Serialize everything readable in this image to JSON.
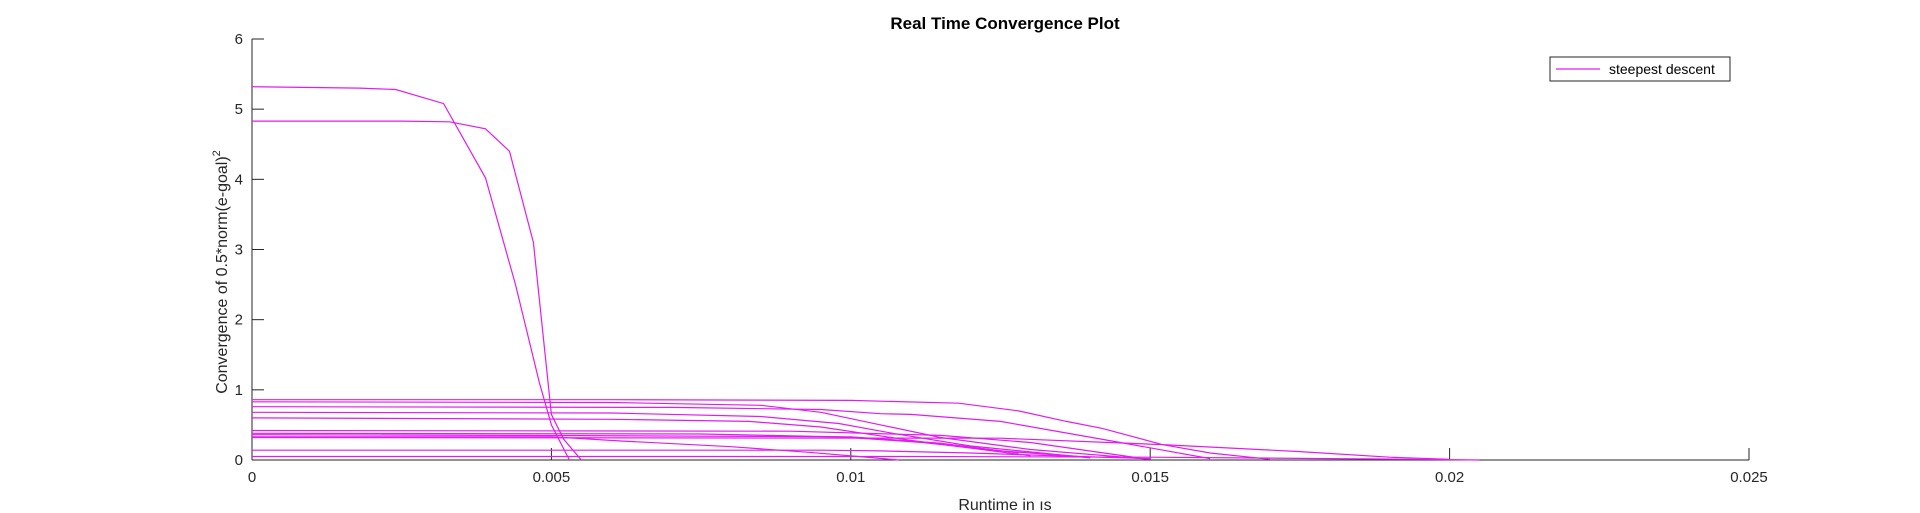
{
  "chart_data": {
    "type": "line",
    "title": "Real Time Convergence Plot",
    "xlabel": "Runtime in ıs",
    "ylabel": "Convergence of 0.5*norm(e-goal)",
    "ylabel_superscript": "2",
    "xlim": [
      0,
      0.025
    ],
    "ylim": [
      0,
      6
    ],
    "xticks": [
      0,
      0.005,
      0.01,
      0.015,
      0.02,
      0.025
    ],
    "xtick_labels": [
      "0",
      "0.005",
      "0.01",
      "0.015",
      "0.02",
      "0.025"
    ],
    "yticks": [
      0,
      1,
      2,
      3,
      4,
      5,
      6
    ],
    "ytick_labels": [
      "0",
      "1",
      "2",
      "3",
      "4",
      "5",
      "6"
    ],
    "grid": false,
    "legend": {
      "position": "top-right",
      "entries": [
        "steepest descent"
      ]
    },
    "line_color": "#e11cf0",
    "series": [
      {
        "name": "steepest descent",
        "x": [
          0,
          0.0018,
          0.0024,
          0.0032,
          0.0039,
          0.0044,
          0.0048,
          0.005,
          0.0053
        ],
        "y": [
          5.32,
          5.3,
          5.28,
          5.08,
          4.02,
          2.5,
          1.1,
          0.5,
          0.0
        ]
      },
      {
        "x": [
          0,
          0.0025,
          0.0033,
          0.0039,
          0.0043,
          0.0047,
          0.005,
          0.0052,
          0.0055
        ],
        "y": [
          4.83,
          4.83,
          4.82,
          4.72,
          4.4,
          3.1,
          0.65,
          0.3,
          0.0
        ]
      },
      {
        "x": [
          0,
          0.006,
          0.01,
          0.0118,
          0.0128,
          0.0136,
          0.0142,
          0.0152,
          0.016,
          0.017
        ],
        "y": [
          0.86,
          0.86,
          0.85,
          0.81,
          0.7,
          0.55,
          0.45,
          0.22,
          0.1,
          0.01
        ]
      },
      {
        "x": [
          0,
          0.006,
          0.0085,
          0.0095,
          0.0105,
          0.0115,
          0.013,
          0.015
        ],
        "y": [
          0.83,
          0.82,
          0.78,
          0.68,
          0.5,
          0.32,
          0.15,
          0.01
        ]
      },
      {
        "x": [
          0,
          0.007,
          0.0095,
          0.0105,
          0.011,
          0.0125,
          0.0145,
          0.016
        ],
        "y": [
          0.76,
          0.75,
          0.72,
          0.66,
          0.65,
          0.55,
          0.25,
          0.02
        ]
      },
      {
        "x": [
          0,
          0.006,
          0.0085,
          0.0098,
          0.0107,
          0.012,
          0.014
        ],
        "y": [
          0.68,
          0.67,
          0.62,
          0.52,
          0.38,
          0.2,
          0.03
        ]
      },
      {
        "x": [
          0,
          0.006,
          0.0083,
          0.0095,
          0.011,
          0.013
        ],
        "y": [
          0.6,
          0.58,
          0.55,
          0.47,
          0.28,
          0.06
        ]
      },
      {
        "x": [
          0,
          0.009,
          0.0115,
          0.013,
          0.0148
        ],
        "y": [
          0.42,
          0.41,
          0.35,
          0.25,
          0.03
        ]
      },
      {
        "x": [
          0,
          0.0075,
          0.0098,
          0.0112,
          0.0125,
          0.014
        ],
        "y": [
          0.38,
          0.37,
          0.33,
          0.25,
          0.13,
          0.04
        ]
      },
      {
        "x": [
          0,
          0.0045,
          0.01,
          0.0115,
          0.0128
        ],
        "y": [
          0.36,
          0.35,
          0.33,
          0.24,
          0.1
        ]
      },
      {
        "x": [
          0,
          0.005,
          0.0062,
          0.008,
          0.0093,
          0.0104,
          0.0108
        ],
        "y": [
          0.33,
          0.33,
          0.27,
          0.19,
          0.11,
          0.03,
          0.0
        ]
      },
      {
        "x": [
          0,
          0.0125,
          0.0152,
          0.0175,
          0.019,
          0.02
        ],
        "y": [
          0.32,
          0.31,
          0.22,
          0.12,
          0.04,
          0.01
        ]
      },
      {
        "x": [
          0,
          0.0095,
          0.0105,
          0.012,
          0.0138,
          0.015
        ],
        "y": [
          0.14,
          0.14,
          0.13,
          0.1,
          0.05,
          0.02
        ]
      },
      {
        "x": [
          0,
          0.011,
          0.015,
          0.018,
          0.0195,
          0.0205
        ],
        "y": [
          0.05,
          0.05,
          0.04,
          0.02,
          0.01,
          0.0
        ]
      }
    ]
  }
}
